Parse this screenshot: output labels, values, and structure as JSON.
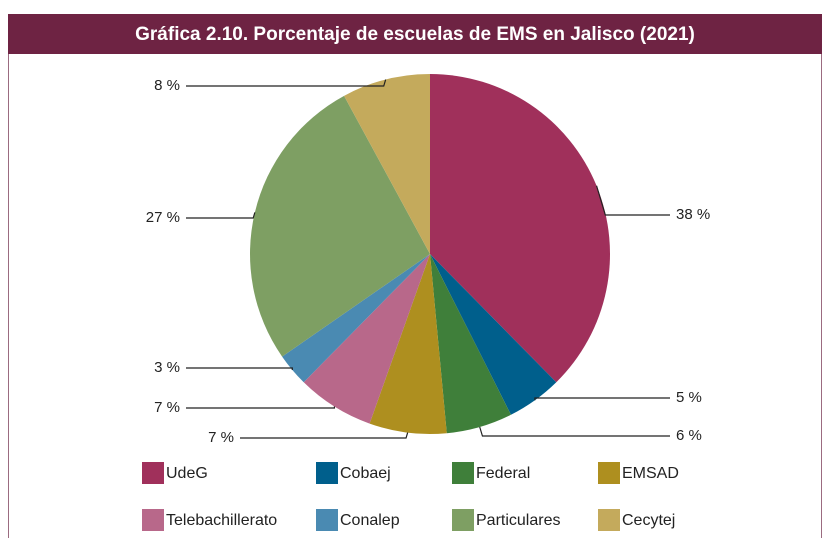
{
  "chart_data": {
    "type": "pie",
    "title": "Gráfica 2.10. Porcentaje de escuelas de EMS en Jalisco (2021)",
    "categories": [
      "UdeG",
      "Cobaej",
      "Federal",
      "EMSAD",
      "Telebachillerato",
      "Conalep",
      "Particulares",
      "Cecytej"
    ],
    "values": [
      38,
      5,
      6,
      7,
      7,
      3,
      27,
      8
    ],
    "value_labels": [
      "38 %",
      "5 %",
      "6 %",
      "7 %",
      "7 %",
      "3 %",
      "27 %",
      "8 %"
    ],
    "colors": [
      "#a0305b",
      "#005f8c",
      "#3f7f3a",
      "#ae8f1f",
      "#b8688a",
      "#4a8ab2",
      "#7e9f63",
      "#c4aa5c"
    ]
  }
}
